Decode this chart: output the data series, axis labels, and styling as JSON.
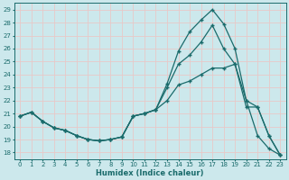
{
  "xlabel": "Humidex (Indice chaleur)",
  "xlim": [
    -0.5,
    23.5
  ],
  "ylim": [
    17.5,
    29.5
  ],
  "yticks": [
    18,
    19,
    20,
    21,
    22,
    23,
    24,
    25,
    26,
    27,
    28,
    29
  ],
  "xticks": [
    0,
    1,
    2,
    3,
    4,
    5,
    6,
    7,
    8,
    9,
    10,
    11,
    12,
    13,
    14,
    15,
    16,
    17,
    18,
    19,
    20,
    21,
    22,
    23
  ],
  "bg_color": "#cce8ec",
  "grid_color": "#b0d8dc",
  "line_color": "#1a6b6b",
  "series": [
    {
      "x": [
        0,
        1,
        2,
        3,
        4,
        5,
        6,
        7,
        8,
        9,
        10,
        11,
        12,
        13,
        14,
        15,
        16,
        17,
        18,
        19,
        20,
        21,
        22,
        23
      ],
      "y": [
        20.8,
        21.1,
        20.4,
        19.9,
        19.7,
        19.3,
        19.0,
        18.9,
        19.0,
        19.2,
        20.8,
        21.0,
        21.3,
        23.3,
        25.8,
        27.3,
        28.2,
        29.0,
        27.9,
        26.0,
        22.0,
        21.5,
        19.3,
        17.8
      ]
    },
    {
      "x": [
        0,
        1,
        2,
        3,
        4,
        5,
        6,
        7,
        8,
        9,
        10,
        11,
        12,
        13,
        14,
        15,
        16,
        17,
        18,
        19,
        20,
        21,
        22,
        23
      ],
      "y": [
        20.8,
        21.1,
        20.4,
        19.9,
        19.7,
        19.3,
        19.0,
        18.9,
        19.0,
        19.2,
        20.8,
        21.0,
        21.3,
        23.0,
        24.8,
        25.5,
        26.5,
        27.8,
        26.0,
        24.8,
        21.5,
        21.5,
        19.3,
        17.8
      ]
    },
    {
      "x": [
        0,
        1,
        2,
        3,
        4,
        5,
        6,
        7,
        8,
        9,
        10,
        11,
        12,
        13,
        14,
        15,
        16,
        17,
        18,
        19,
        20,
        21,
        22,
        23
      ],
      "y": [
        20.8,
        21.1,
        20.4,
        19.9,
        19.7,
        19.3,
        19.0,
        18.9,
        19.0,
        19.2,
        20.8,
        21.0,
        21.3,
        22.0,
        23.2,
        23.5,
        24.0,
        24.5,
        24.5,
        24.8,
        22.0,
        19.3,
        18.3,
        17.8
      ]
    }
  ]
}
